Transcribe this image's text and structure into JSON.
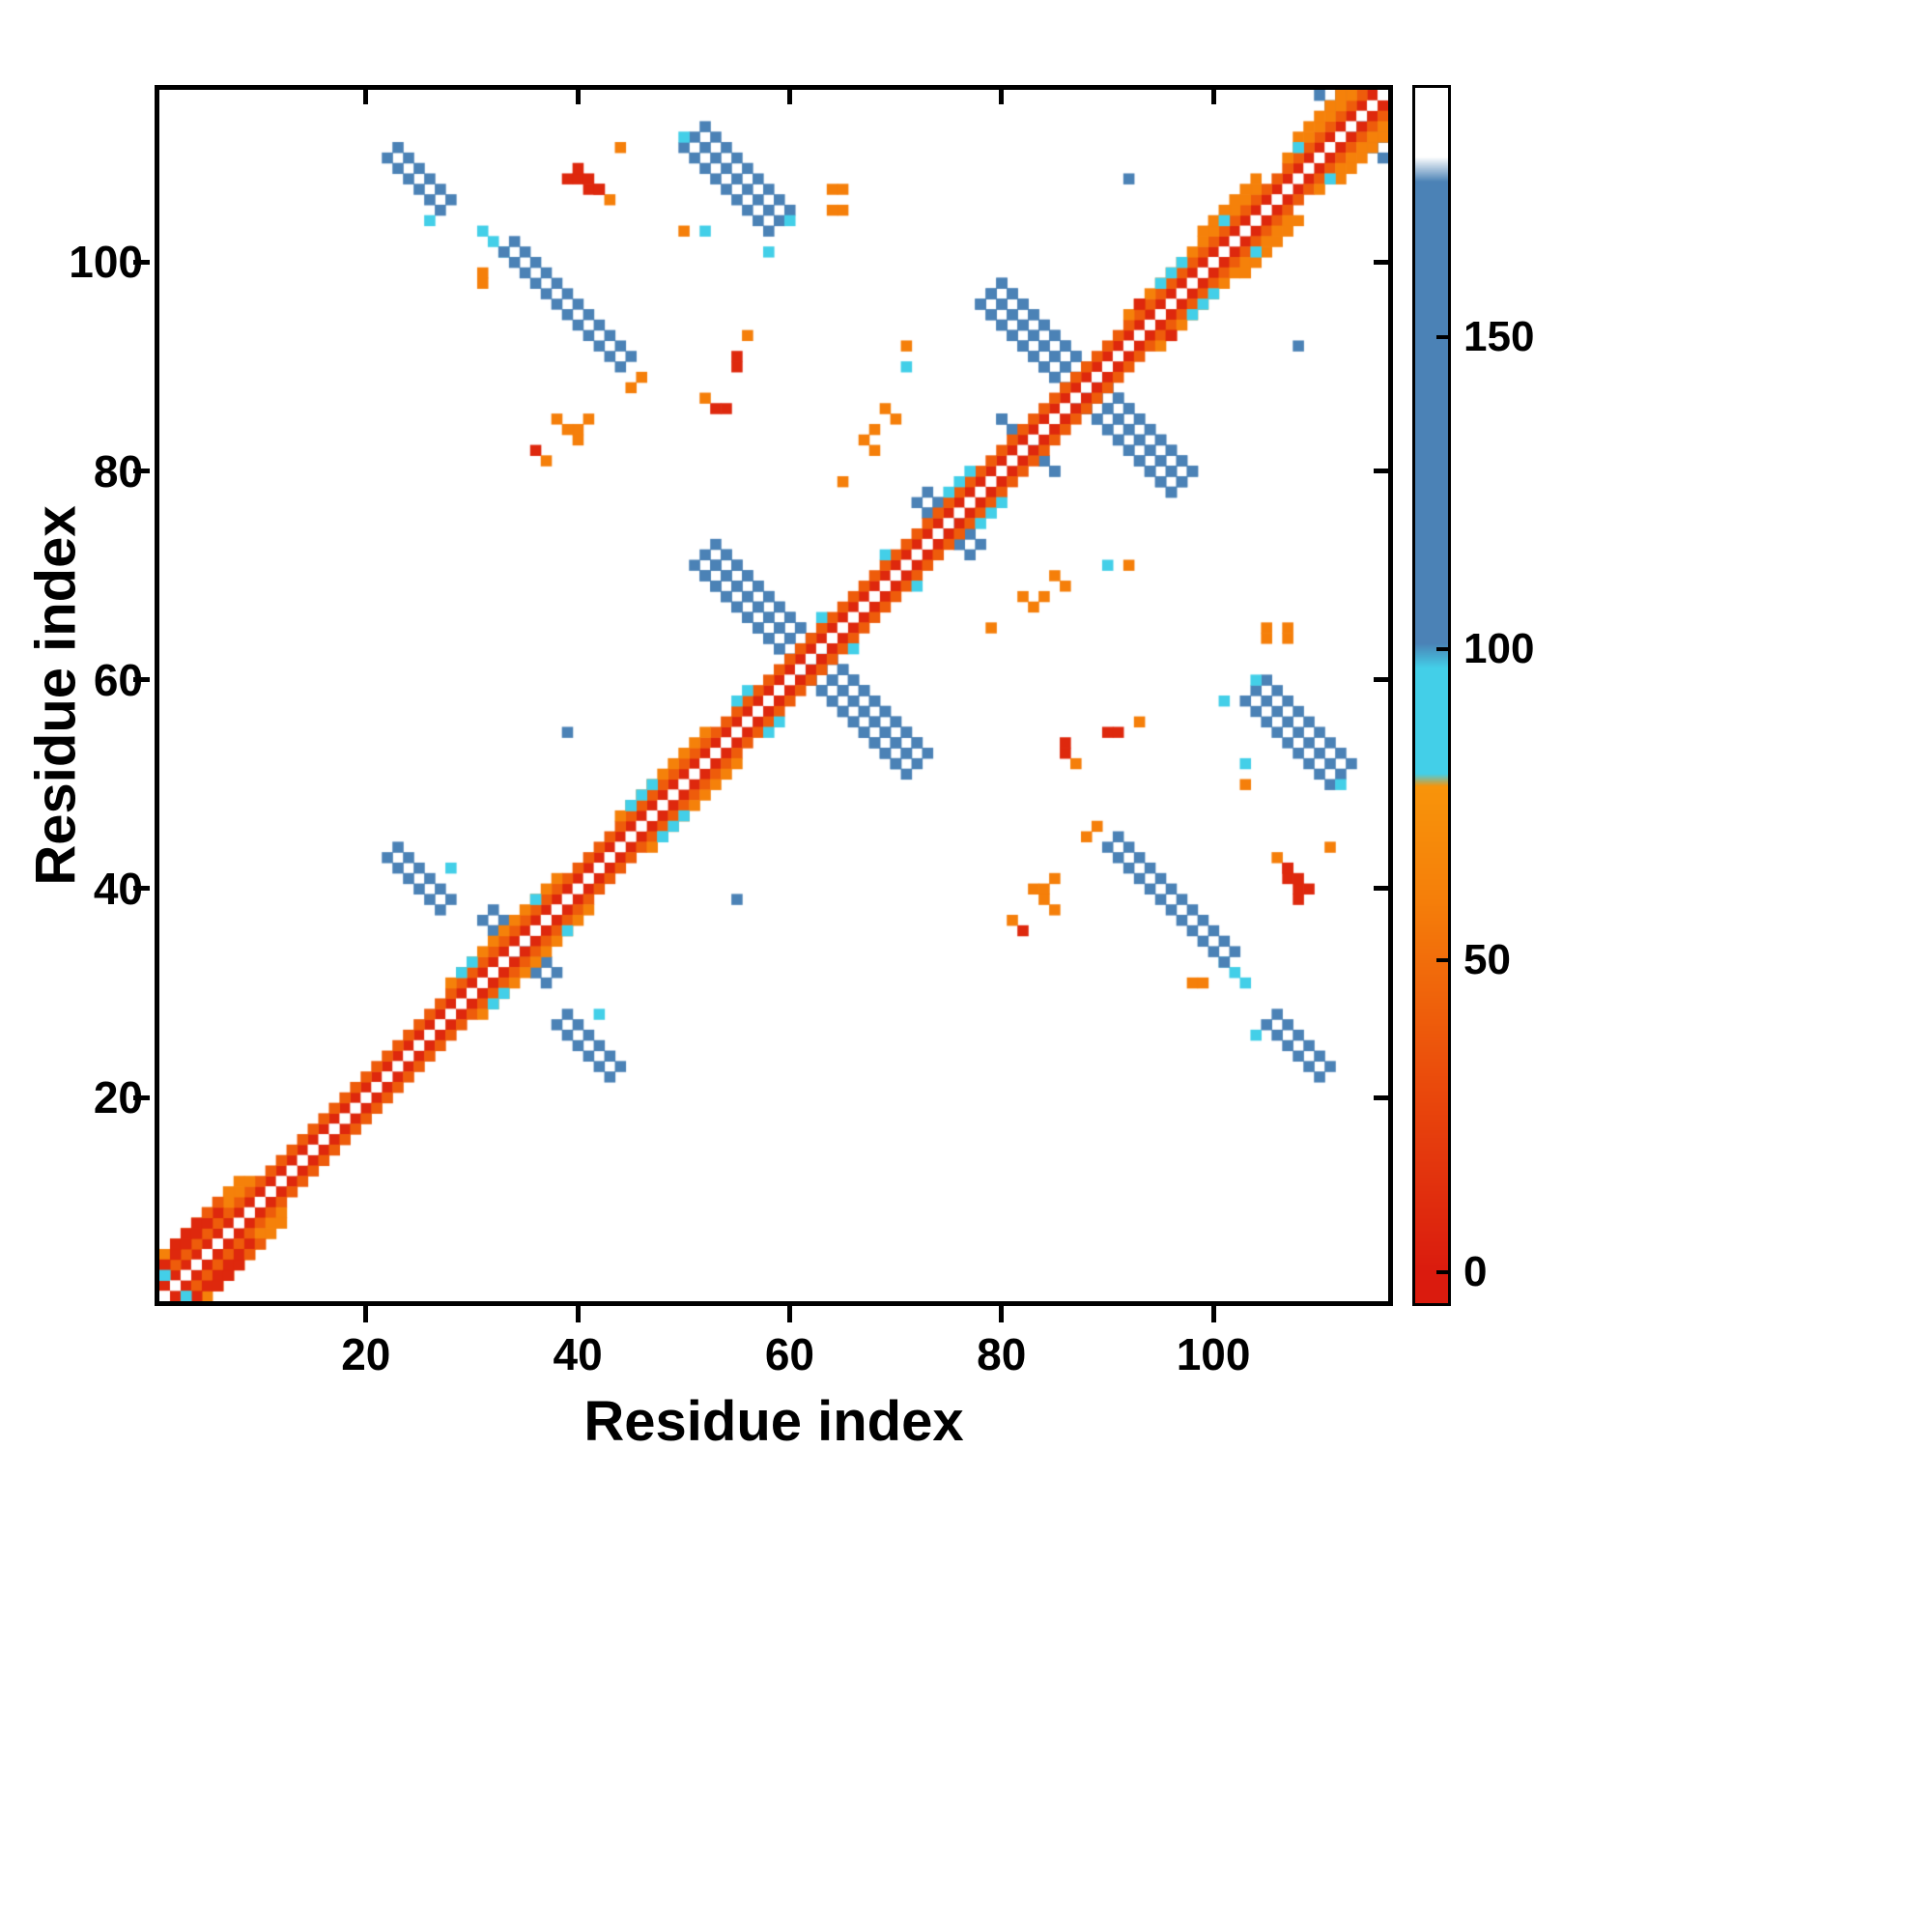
{
  "chart_data": {
    "type": "heatmap",
    "title": "",
    "xlabel": "Residue index",
    "ylabel": "Residue index",
    "n_residues": 116,
    "axis_range": [
      1,
      116
    ],
    "x_ticks": [
      20,
      40,
      60,
      80,
      100
    ],
    "y_ticks": [
      20,
      40,
      60,
      80,
      100
    ],
    "grid": false,
    "colorbar": {
      "position": "right",
      "ticks": [
        0,
        50,
        100,
        150
      ],
      "vmin": -5,
      "vmax": 190,
      "stops": [
        [
          0,
          "#da1b0e"
        ],
        [
          30,
          "#ea4a0c"
        ],
        [
          60,
          "#f57f0a"
        ],
        [
          78,
          "#f8940a"
        ],
        [
          80,
          "#43cfe8"
        ],
        [
          97,
          "#43cfe8"
        ],
        [
          101,
          "#4b82b6"
        ],
        [
          175,
          "#4b82b6"
        ],
        [
          179,
          "#ffffff"
        ],
        [
          190,
          "#ffffff"
        ]
      ]
    },
    "category_values": {
      "red": 8,
      "red_orange": 40,
      "orange": 60,
      "cyan": 87,
      "blue": 128
    },
    "diagonal": "white",
    "band": {
      "offset1_value": 8,
      "offset2_value": 40,
      "thick3_ranges": [
        [
          1,
          9
        ],
        [
          28,
          38
        ],
        [
          44,
          52
        ],
        [
          92,
          104
        ],
        [
          107,
          115
        ]
      ],
      "thick3_value": 62,
      "thick4_ranges": [
        [
          1,
          8
        ],
        [
          99,
          104
        ],
        [
          108,
          115
        ]
      ],
      "thick4_value": 62
    },
    "antidiagonal_segments": [
      [
        22,
        110,
        6,
        2,
        128
      ],
      [
        31,
        103,
        3,
        1,
        87
      ],
      [
        33,
        101,
        12,
        2,
        128
      ],
      [
        51,
        112,
        9,
        3,
        128
      ],
      [
        52,
        72,
        20,
        3,
        128
      ],
      [
        79,
        97,
        19,
        3,
        128
      ],
      [
        22,
        43,
        6,
        2,
        128
      ],
      [
        72,
        77,
        5,
        2,
        128
      ],
      [
        31,
        37,
        6,
        2,
        128
      ],
      [
        110,
        116,
        6,
        2,
        128
      ],
      [
        80,
        85,
        6,
        1,
        128
      ]
    ],
    "extra_cells": [
      [
        39,
        108,
        8
      ],
      [
        40,
        108,
        8
      ],
      [
        41,
        107,
        8
      ],
      [
        42,
        107,
        8
      ],
      [
        43,
        106,
        60
      ],
      [
        44,
        111,
        60
      ],
      [
        50,
        103,
        60
      ],
      [
        52,
        103,
        87
      ],
      [
        60,
        104,
        87
      ],
      [
        50,
        112,
        87
      ],
      [
        64,
        107,
        60
      ],
      [
        65,
        107,
        60
      ],
      [
        53,
        86,
        8
      ],
      [
        54,
        86,
        8
      ],
      [
        52,
        87,
        60
      ],
      [
        40,
        84,
        60
      ],
      [
        41,
        85,
        60
      ],
      [
        36,
        82,
        8
      ],
      [
        37,
        81,
        60
      ],
      [
        45,
        88,
        60
      ],
      [
        46,
        89,
        60
      ],
      [
        71,
        92,
        60
      ],
      [
        71,
        90,
        87
      ],
      [
        69,
        86,
        60
      ],
      [
        70,
        85,
        60
      ],
      [
        68,
        84,
        60
      ],
      [
        82,
        68,
        60
      ],
      [
        83,
        67,
        60
      ],
      [
        79,
        65,
        60
      ],
      [
        105,
        65,
        60
      ],
      [
        105,
        64,
        60
      ],
      [
        90,
        55,
        8
      ],
      [
        91,
        55,
        8
      ],
      [
        93,
        56,
        60
      ],
      [
        107,
        42,
        8
      ],
      [
        108,
        41,
        8
      ],
      [
        109,
        40,
        8
      ],
      [
        83,
        40,
        60
      ],
      [
        84,
        39,
        60
      ],
      [
        85,
        38,
        60
      ],
      [
        39,
        55,
        128
      ],
      [
        92,
        108,
        128
      ],
      [
        98,
        31,
        60
      ],
      [
        101,
        58,
        87
      ],
      [
        31,
        99,
        60
      ],
      [
        26,
        104,
        87
      ],
      [
        28,
        42,
        87
      ],
      [
        2,
        5,
        8
      ],
      [
        2,
        6,
        8
      ],
      [
        3,
        6,
        8
      ],
      [
        3,
        7,
        8
      ],
      [
        4,
        7,
        8
      ],
      [
        4,
        8,
        8
      ],
      [
        5,
        8,
        8
      ],
      [
        6,
        9,
        8
      ],
      [
        1,
        4,
        8
      ],
      [
        5,
        9,
        40
      ],
      [
        6,
        10,
        40
      ],
      [
        1,
        3,
        87
      ],
      [
        29,
        32,
        87
      ],
      [
        33,
        30,
        87
      ],
      [
        36,
        39,
        87
      ],
      [
        45,
        48,
        87
      ],
      [
        48,
        45,
        87
      ],
      [
        50,
        47,
        87
      ],
      [
        56,
        59,
        87
      ],
      [
        58,
        55,
        87
      ],
      [
        63,
        66,
        87
      ],
      [
        69,
        72,
        87
      ],
      [
        75,
        78,
        87
      ],
      [
        80,
        77,
        87
      ],
      [
        95,
        98,
        87
      ],
      [
        97,
        100,
        87
      ],
      [
        99,
        96,
        87
      ],
      [
        104,
        101,
        87
      ],
      [
        108,
        111,
        87
      ],
      [
        46,
        49,
        87
      ],
      [
        76,
        79,
        87
      ],
      [
        93,
        96,
        8
      ],
      [
        96,
        93,
        8
      ]
    ]
  }
}
